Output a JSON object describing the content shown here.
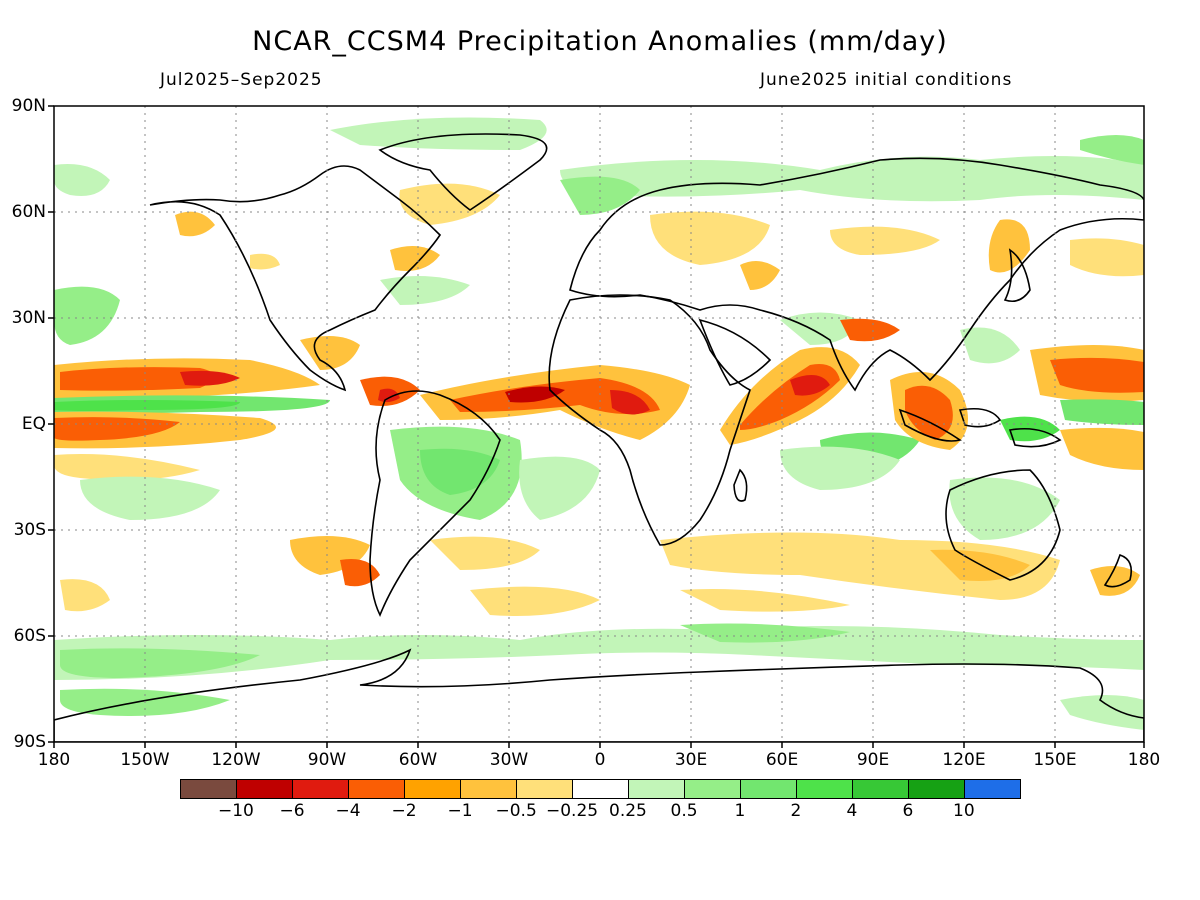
{
  "title": "NCAR_CCSM4 Precipitation Anomalies (mm/day)",
  "period": "Jul2025–Sep2025",
  "init": "June2025 initial conditions",
  "map": {
    "lat_labels": [
      "90N",
      "60N",
      "30N",
      "EQ",
      "30S",
      "60S",
      "90S"
    ],
    "lon_labels": [
      "180",
      "150W",
      "120W",
      "90W",
      "60W",
      "30W",
      "0",
      "30E",
      "60E",
      "90E",
      "120E",
      "150E",
      "180"
    ],
    "lon_range": [
      -180,
      180
    ],
    "lat_range": [
      -90,
      90
    ],
    "grid": "dotted"
  },
  "colorbar": {
    "colors": [
      "#7a4a3e",
      "#bf0000",
      "#e01b0f",
      "#fa5e05",
      "#ffa200",
      "#ffc23d",
      "#ffe07a",
      "#ffffff",
      "#c2f5b8",
      "#95ee88",
      "#72e66f",
      "#4ee24a",
      "#37c836",
      "#16a114",
      "#1e6ee8"
    ],
    "labels": [
      "−10",
      "−6",
      "−4",
      "−2",
      "−1",
      "−0.5",
      "−0.25",
      "0.25",
      "0.5",
      "1",
      "2",
      "4",
      "6",
      "10"
    ]
  }
}
